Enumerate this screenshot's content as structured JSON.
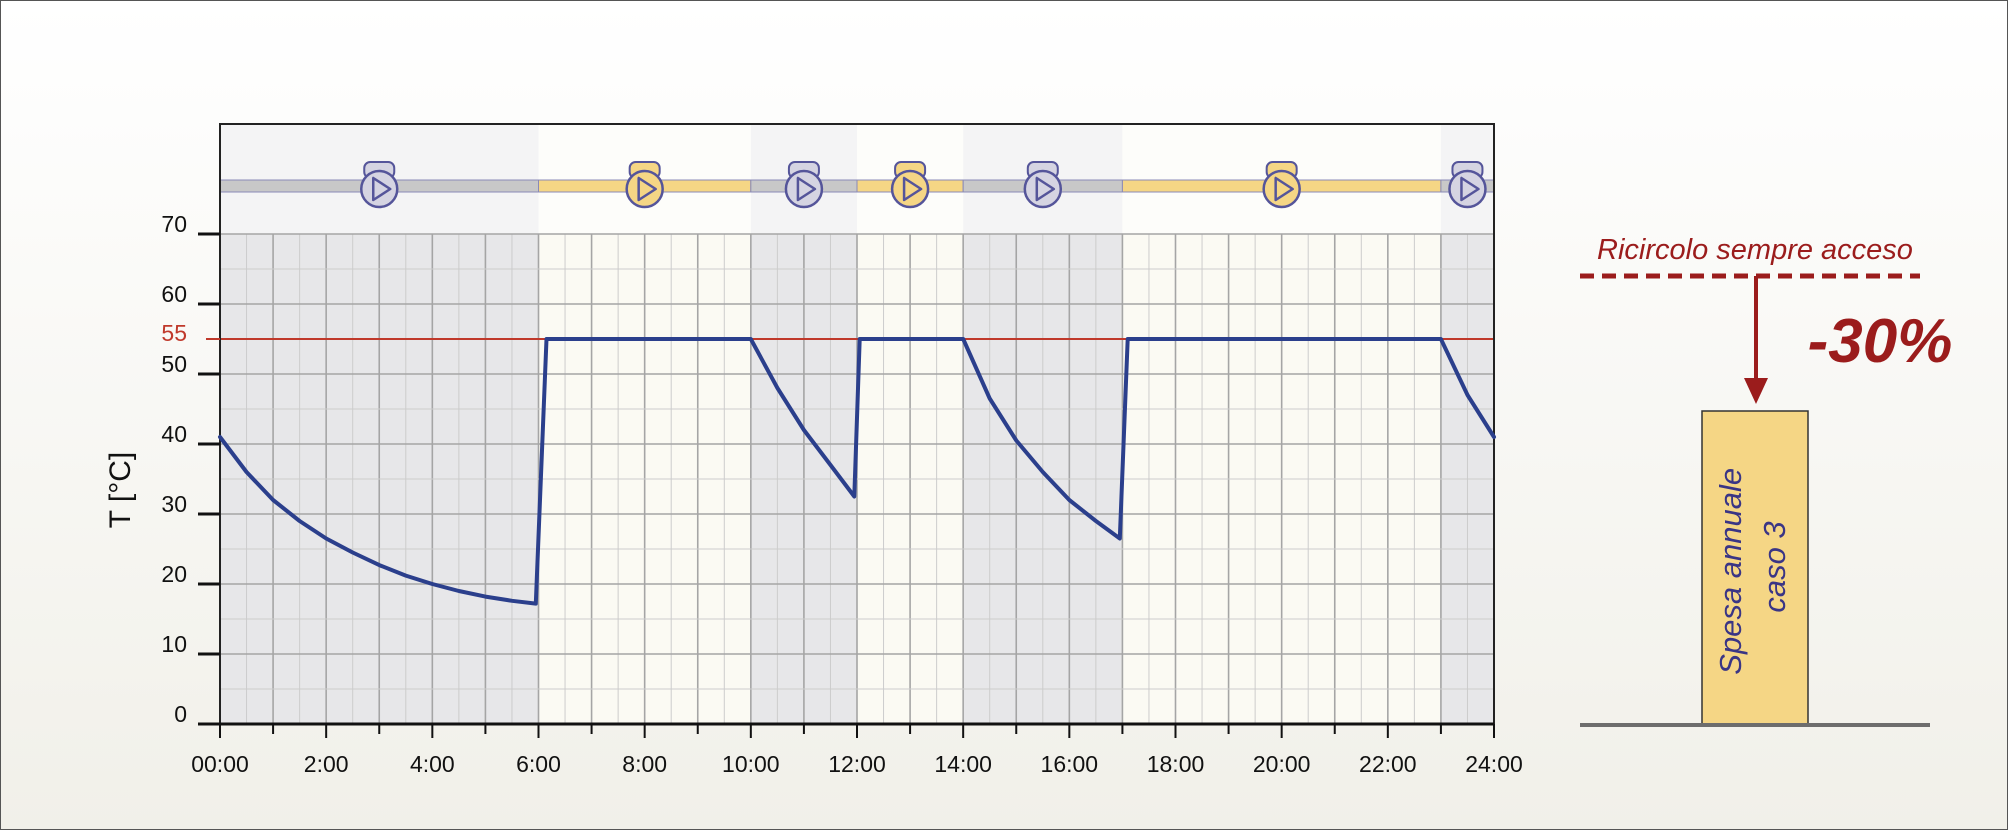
{
  "chart_data": {
    "type": "line",
    "ylabel": "T [°C]",
    "xlim": [
      0,
      24
    ],
    "ylim": [
      0,
      70
    ],
    "x_ticks": [
      "00:00",
      "2:00",
      "4:00",
      "6:00",
      "8:00",
      "10:00",
      "12:00",
      "14:00",
      "16:00",
      "18:00",
      "20:00",
      "22:00",
      "24:00"
    ],
    "y_ticks": [
      "0",
      "10",
      "20",
      "30",
      "40",
      "50",
      "60",
      "70"
    ],
    "setpoint": {
      "value": 55,
      "label": "55",
      "color": "#c0392b"
    },
    "line_color": "#2b3f8c",
    "grid": true,
    "pump_schedule": [
      {
        "start": 0,
        "end": 6,
        "on": false
      },
      {
        "start": 6,
        "end": 10,
        "on": true
      },
      {
        "start": 10,
        "end": 12,
        "on": false
      },
      {
        "start": 12,
        "end": 14,
        "on": true
      },
      {
        "start": 14,
        "end": 17,
        "on": false
      },
      {
        "start": 17,
        "end": 23,
        "on": true
      },
      {
        "start": 23,
        "end": 24,
        "on": false
      }
    ],
    "series": [
      {
        "x": [
          0,
          0.5,
          1,
          1.5,
          2,
          2.5,
          3,
          3.5,
          4,
          4.5,
          5,
          5.5,
          5.95,
          6.15,
          10,
          10.5,
          11,
          11.5,
          11.95,
          12.05,
          14,
          14.5,
          15,
          15.5,
          16,
          16.5,
          16.95,
          17.1,
          23,
          23.5,
          24
        ],
        "y": [
          41,
          36,
          32,
          29,
          26.5,
          24.5,
          22.7,
          21.2,
          20,
          19,
          18.2,
          17.6,
          17.2,
          55,
          55,
          48,
          42,
          37,
          32.5,
          55,
          55,
          46.5,
          40.5,
          36,
          32,
          29,
          26.5,
          55,
          55,
          47,
          41
        ]
      }
    ]
  },
  "pump_on_color": "#f5d685",
  "pump_off_color": "#c8c8c8",
  "pump_icon": "pump-icon",
  "side": {
    "always_on_label": "Ricircolo sempre acceso",
    "reduction_label": "-30%",
    "bar_label_line1": "Spesa annuale",
    "bar_label_line2": "caso 3",
    "accent_color": "#9b1c1c",
    "bar_color": "#f5d685"
  }
}
